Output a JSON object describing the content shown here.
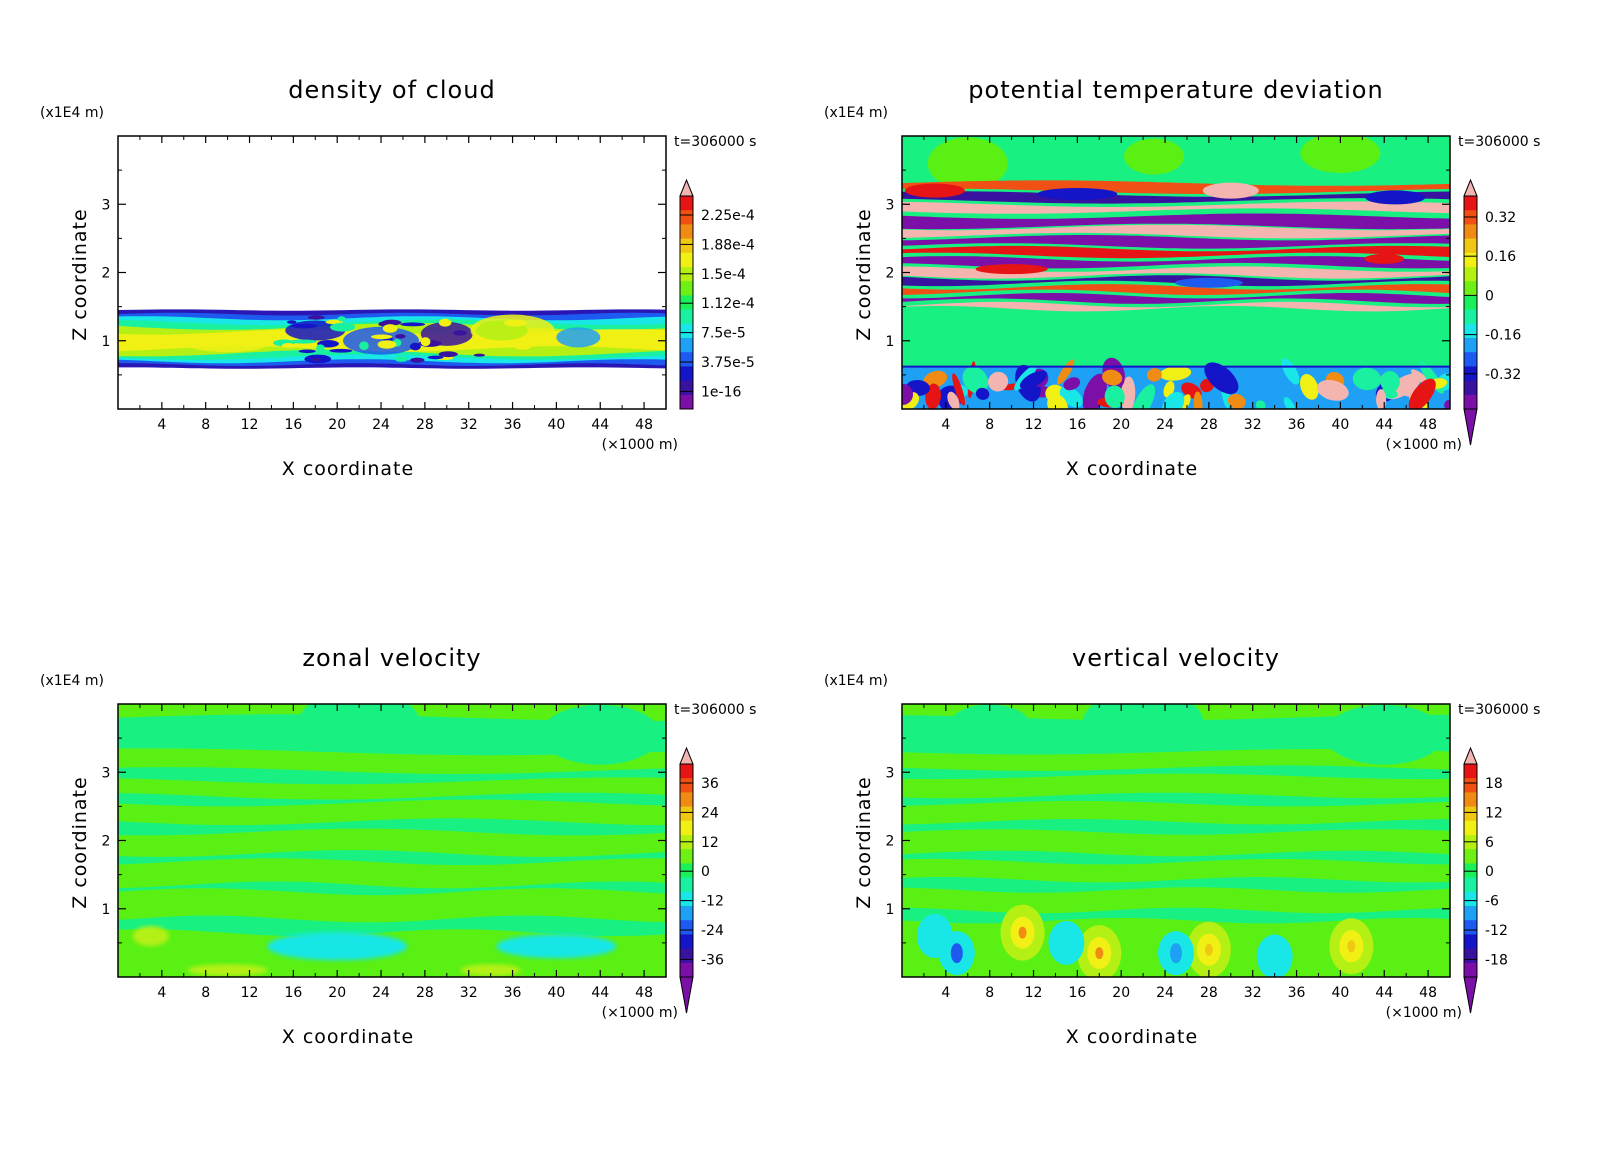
{
  "colors": {
    "palette": [
      "#7b0fa8",
      "#3a12a0",
      "#1414c8",
      "#1e5af0",
      "#1ea0f5",
      "#19e6e6",
      "#19f0a0",
      "#19f05a",
      "#6ef014",
      "#b4f014",
      "#f0f014",
      "#f0c814",
      "#f08c14",
      "#f05014",
      "#e61414",
      "#f4b4b0"
    ],
    "field_bg": "#19f082",
    "field_alt": "#5af014"
  },
  "chart_data": [
    {
      "type": "heatmap",
      "title": "density of cloud",
      "xlabel": "X coordinate",
      "ylabel": "Z coordinate",
      "x_unit": "(×1000 m)",
      "y_unit": "(x1E4 m)",
      "time_label": "t=306000 s",
      "x_ticks": [
        "4",
        "8",
        "12",
        "16",
        "20",
        "24",
        "28",
        "32",
        "36",
        "40",
        "44",
        "48"
      ],
      "y_ticks": [
        "1",
        "2",
        "3"
      ],
      "xlim": [
        0,
        50
      ],
      "ylim": [
        0,
        4
      ],
      "colorbar_labels": [
        "2.25e-4",
        "1.88e-4",
        "1.5e-4",
        "1.12e-4",
        "7.5e-5",
        "3.75e-5",
        "1e-16"
      ],
      "colorbar_values": [
        0.000225,
        0.000188,
        0.00015,
        0.000112,
        7.5e-05,
        3.75e-05,
        1e-16
      ],
      "extend_min": false,
      "cloud_layer_z": [
        0.6,
        1.45
      ]
    },
    {
      "type": "heatmap",
      "title": "potential temperature deviation",
      "xlabel": "X coordinate",
      "ylabel": "Z coordinate",
      "x_unit": "(×1000 m)",
      "y_unit": "(x1E4 m)",
      "time_label": "t=306000 s",
      "x_ticks": [
        "4",
        "8",
        "12",
        "16",
        "20",
        "24",
        "28",
        "32",
        "36",
        "40",
        "44",
        "48"
      ],
      "y_ticks": [
        "1",
        "2",
        "3"
      ],
      "xlim": [
        0,
        50
      ],
      "ylim": [
        0,
        4
      ],
      "colorbar_labels": [
        "0.32",
        "0.16",
        "0",
        "-0.16",
        "-0.32"
      ],
      "colorbar_values": [
        0.32,
        0.16,
        0,
        -0.16,
        -0.32
      ],
      "extend_min": true
    },
    {
      "type": "heatmap",
      "title": "zonal velocity",
      "xlabel": "X coordinate",
      "ylabel": "Z coordinate",
      "x_unit": "(×1000 m)",
      "y_unit": "(x1E4 m)",
      "time_label": "t=306000 s",
      "x_ticks": [
        "4",
        "8",
        "12",
        "16",
        "20",
        "24",
        "28",
        "32",
        "36",
        "40",
        "44",
        "48"
      ],
      "y_ticks": [
        "1",
        "2",
        "3"
      ],
      "xlim": [
        0,
        50
      ],
      "ylim": [
        0,
        4
      ],
      "colorbar_labels": [
        "36",
        "24",
        "12",
        "0",
        "-12",
        "-24",
        "-36"
      ],
      "colorbar_values": [
        36,
        24,
        12,
        0,
        -12,
        -24,
        -36
      ],
      "extend_min": true
    },
    {
      "type": "heatmap",
      "title": "vertical velocity",
      "xlabel": "X coordinate",
      "ylabel": "Z coordinate",
      "x_unit": "(×1000 m)",
      "y_unit": "(x1E4 m)",
      "time_label": "t=306000 s",
      "x_ticks": [
        "4",
        "8",
        "12",
        "16",
        "20",
        "24",
        "28",
        "32",
        "36",
        "40",
        "44",
        "48"
      ],
      "y_ticks": [
        "1",
        "2",
        "3"
      ],
      "xlim": [
        0,
        50
      ],
      "ylim": [
        0,
        4
      ],
      "colorbar_labels": [
        "18",
        "12",
        "6",
        "0",
        "-6",
        "-12",
        "-18"
      ],
      "colorbar_values": [
        18,
        12,
        6,
        0,
        -6,
        -12,
        -18
      ],
      "extend_min": true
    }
  ]
}
